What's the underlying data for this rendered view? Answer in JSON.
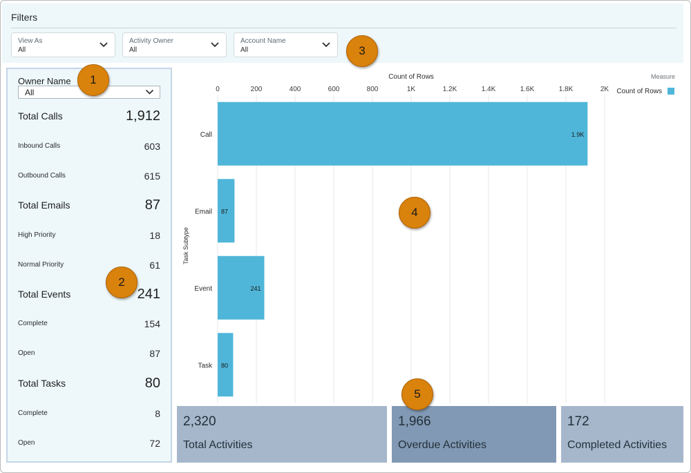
{
  "filters": {
    "title": "Filters",
    "dropdowns": [
      {
        "label": "View As",
        "value": "All"
      },
      {
        "label": "Activity Owner",
        "value": "All"
      },
      {
        "label": "Account Name",
        "value": "All"
      }
    ]
  },
  "badges": [
    "1",
    "2",
    "3",
    "4",
    "5"
  ],
  "left_panel": {
    "owner_label": "Owner Name",
    "owner_value": "All",
    "metrics": [
      {
        "label": "Total Calls",
        "value": "1,912",
        "size": "big"
      },
      {
        "label": "Inbound Calls",
        "value": "603",
        "size": "small"
      },
      {
        "label": "Outbound Calls",
        "value": "615",
        "size": "small"
      },
      {
        "label": "Total Emails",
        "value": "87",
        "size": "big"
      },
      {
        "label": "High Priority",
        "value": "18",
        "size": "small"
      },
      {
        "label": "Normal Priority",
        "value": "61",
        "size": "small"
      },
      {
        "label": "Total Events",
        "value": "241",
        "size": "big"
      },
      {
        "label": "Complete",
        "value": "154",
        "size": "small"
      },
      {
        "label": "Open",
        "value": "87",
        "size": "small"
      },
      {
        "label": "Total Tasks",
        "value": "80",
        "size": "big"
      },
      {
        "label": "Complete",
        "value": "8",
        "size": "small"
      },
      {
        "label": "Open",
        "value": "72",
        "size": "small"
      }
    ]
  },
  "chart_data": {
    "type": "bar",
    "orientation": "horizontal",
    "title": "Count of Rows",
    "xlabel": "Count of Rows",
    "ylabel": "Task Subtype",
    "categories": [
      "Call",
      "Email",
      "Event",
      "Task"
    ],
    "values": [
      1912,
      87,
      241,
      80
    ],
    "data_labels": [
      "1.9K",
      "87",
      "241",
      "80"
    ],
    "xlim": [
      0,
      2000
    ],
    "ticks": [
      0,
      200,
      400,
      600,
      800,
      1000,
      1200,
      1400,
      1600,
      1800,
      2000
    ],
    "tick_labels": [
      "0",
      "200",
      "400",
      "600",
      "800",
      "1K",
      "1.2K",
      "1.4K",
      "1.6K",
      "1.8K",
      "2K"
    ],
    "legend_title": "Measure",
    "legend_entry": "Count of Rows",
    "legend_position": "top-right",
    "bar_color": "#4fb6d9",
    "grid": true
  },
  "kpis": [
    {
      "value": "2,320",
      "label": "Total Activities",
      "color": "#a6b7cc"
    },
    {
      "value": "1,966",
      "label": "Overdue Activities",
      "color": "#8199b4"
    },
    {
      "value": "172",
      "label": "Completed Activities",
      "color": "#a6b7cc"
    }
  ]
}
